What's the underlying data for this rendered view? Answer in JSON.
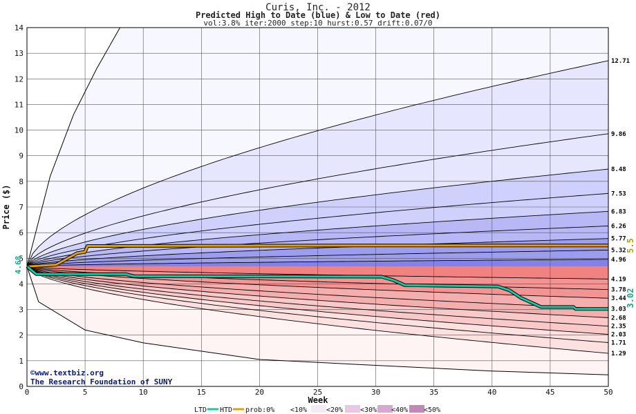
{
  "chart_data": {
    "type": "area",
    "title": "Curis, Inc. - 2012",
    "subtitle": "Predicted High to Date (blue) &  Low to Date (red)",
    "info": "vol:3.8% iter:2000 step:10 hurst:0.57 drift:0.07/0",
    "xlabel": "Week",
    "ylabel": "Price ($)",
    "xlim": [
      0,
      50
    ],
    "ylim": [
      0,
      14
    ],
    "x_ticks": [
      0,
      5,
      10,
      15,
      20,
      25,
      30,
      35,
      40,
      45,
      50
    ],
    "y_ticks": [
      0,
      1,
      2,
      3,
      4,
      5,
      6,
      7,
      8,
      9,
      10,
      11,
      12,
      13,
      14
    ],
    "grid": true,
    "start_price": 4.68,
    "start_label": "4.68",
    "high_to_date_final": "5.5",
    "low_to_date_final": "3.02",
    "high_band_end_values": [
      4.96,
      5.32,
      5.77,
      6.26,
      6.83,
      7.53,
      8.48,
      9.86,
      12.71
    ],
    "high_band_end_labels": [
      "4.96",
      "5.32",
      "5.77",
      "6.26",
      "6.83",
      "7.53",
      "8.48",
      "9.86",
      "12.71"
    ],
    "low_band_end_values": [
      4.19,
      3.78,
      3.44,
      3.03,
      2.68,
      2.35,
      2.03,
      1.71,
      1.29
    ],
    "low_band_end_labels": [
      "4.19",
      "3.78",
      "3.44",
      "3.03",
      "2.68",
      "2.35",
      "2.03",
      "1.71",
      "1.29"
    ],
    "outer_high_curve": [
      [
        0,
        4.68
      ],
      [
        2,
        8.2
      ],
      [
        4,
        10.6
      ],
      [
        6,
        12.4
      ],
      [
        8,
        14.0
      ]
    ],
    "outer_low_curve": [
      [
        0,
        4.68
      ],
      [
        1,
        3.3
      ],
      [
        5,
        2.2
      ],
      [
        10,
        1.7
      ],
      [
        20,
        1.05
      ],
      [
        30,
        0.82
      ],
      [
        40,
        0.6
      ],
      [
        50,
        0.45
      ]
    ],
    "series": [
      {
        "name": "HTD",
        "color": "#e3a000",
        "points": [
          [
            0,
            4.68
          ],
          [
            2.5,
            4.75
          ],
          [
            3.5,
            5.0
          ],
          [
            4.3,
            5.2
          ],
          [
            5.0,
            5.25
          ],
          [
            5.2,
            5.48
          ],
          [
            30,
            5.5
          ],
          [
            50,
            5.5
          ]
        ]
      },
      {
        "name": "LTD",
        "color": "#19c8a0",
        "points": [
          [
            0,
            4.68
          ],
          [
            0.8,
            4.38
          ],
          [
            8.5,
            4.38
          ],
          [
            9.2,
            4.3
          ],
          [
            30.5,
            4.28
          ],
          [
            31.5,
            4.15
          ],
          [
            32.5,
            3.95
          ],
          [
            40.5,
            3.9
          ],
          [
            41.5,
            3.75
          ],
          [
            42.5,
            3.45
          ],
          [
            43.5,
            3.25
          ],
          [
            44.2,
            3.1
          ],
          [
            47,
            3.1
          ],
          [
            47.2,
            3.02
          ],
          [
            50,
            3.02
          ]
        ]
      }
    ]
  },
  "credit": {
    "line1": "©www.textbiz.org",
    "line2": "The Research Foundation of SUNY"
  },
  "legend": {
    "ltd": "LTD",
    "htd": "HTD",
    "prob": "prob:0%",
    "p10": "<10%",
    "p20": "<20%",
    "p30": "<30%",
    "p40": "<40%",
    "p50": "<50%"
  },
  "colors": {
    "blue_bands": [
      "#f7f7ff",
      "#e6e6ff",
      "#d0d0fc",
      "#b8b8f7",
      "#9d9df0",
      "#8282ec"
    ],
    "red_bands": [
      "#fff4f4",
      "#fde0e0",
      "#f9c8c8",
      "#f5aeae",
      "#f39494",
      "#f08282"
    ],
    "htd_line": "#e3a000",
    "ltd_line": "#19c8a0",
    "htd_label": "#b8a000",
    "ltd_label": "#19a888"
  }
}
